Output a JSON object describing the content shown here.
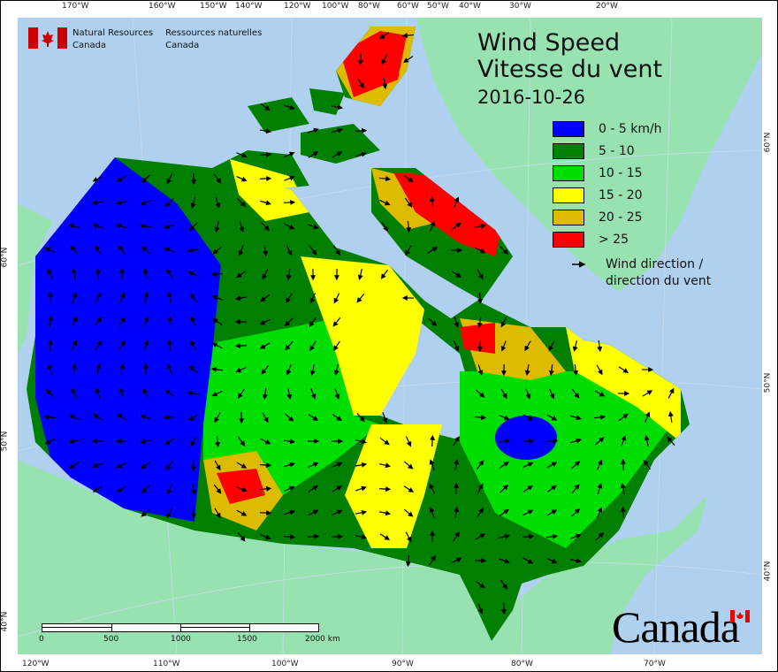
{
  "title": {
    "line1": "Wind Speed",
    "line2": "Vitesse du vent",
    "date": "2016-10-26"
  },
  "legend": {
    "items": [
      {
        "label": "0 - 5 km/h",
        "color": "#0000ff"
      },
      {
        "label": "5 - 10",
        "color": "#007f00"
      },
      {
        "label": "10 - 15",
        "color": "#00dd00"
      },
      {
        "label": "15 - 20",
        "color": "#ffff00"
      },
      {
        "label": "20 - 25",
        "color": "#ddbb00"
      },
      {
        "label": "> 25",
        "color": "#ff0000"
      }
    ],
    "wind_line1": "Wind direction /",
    "wind_line2": "direction du vent"
  },
  "logo": {
    "en1": "Natural Resources",
    "en2": "Canada",
    "fr1": "Ressources naturelles",
    "fr2": "Canada"
  },
  "wordmark": "Canada",
  "scale": {
    "labels": [
      "0",
      "500",
      "1000",
      "1500",
      "2000 km"
    ]
  },
  "axes": {
    "top": [
      "170°W",
      "160°W",
      "150°W",
      "140°W",
      "120°W",
      "100°W",
      "80°W",
      "60°W",
      "50°W",
      "40°W",
      "30°W",
      "20°W"
    ],
    "bottom": [
      "120°W",
      "110°W",
      "100°W",
      "90°W",
      "80°W",
      "70°W"
    ],
    "left": [
      "60°N",
      "50°N",
      "40°N"
    ],
    "right": [
      "60°N",
      "50°N",
      "40°N"
    ]
  },
  "colors": {
    "ocean": "#b0d0f0",
    "land": "#98e2b2"
  }
}
